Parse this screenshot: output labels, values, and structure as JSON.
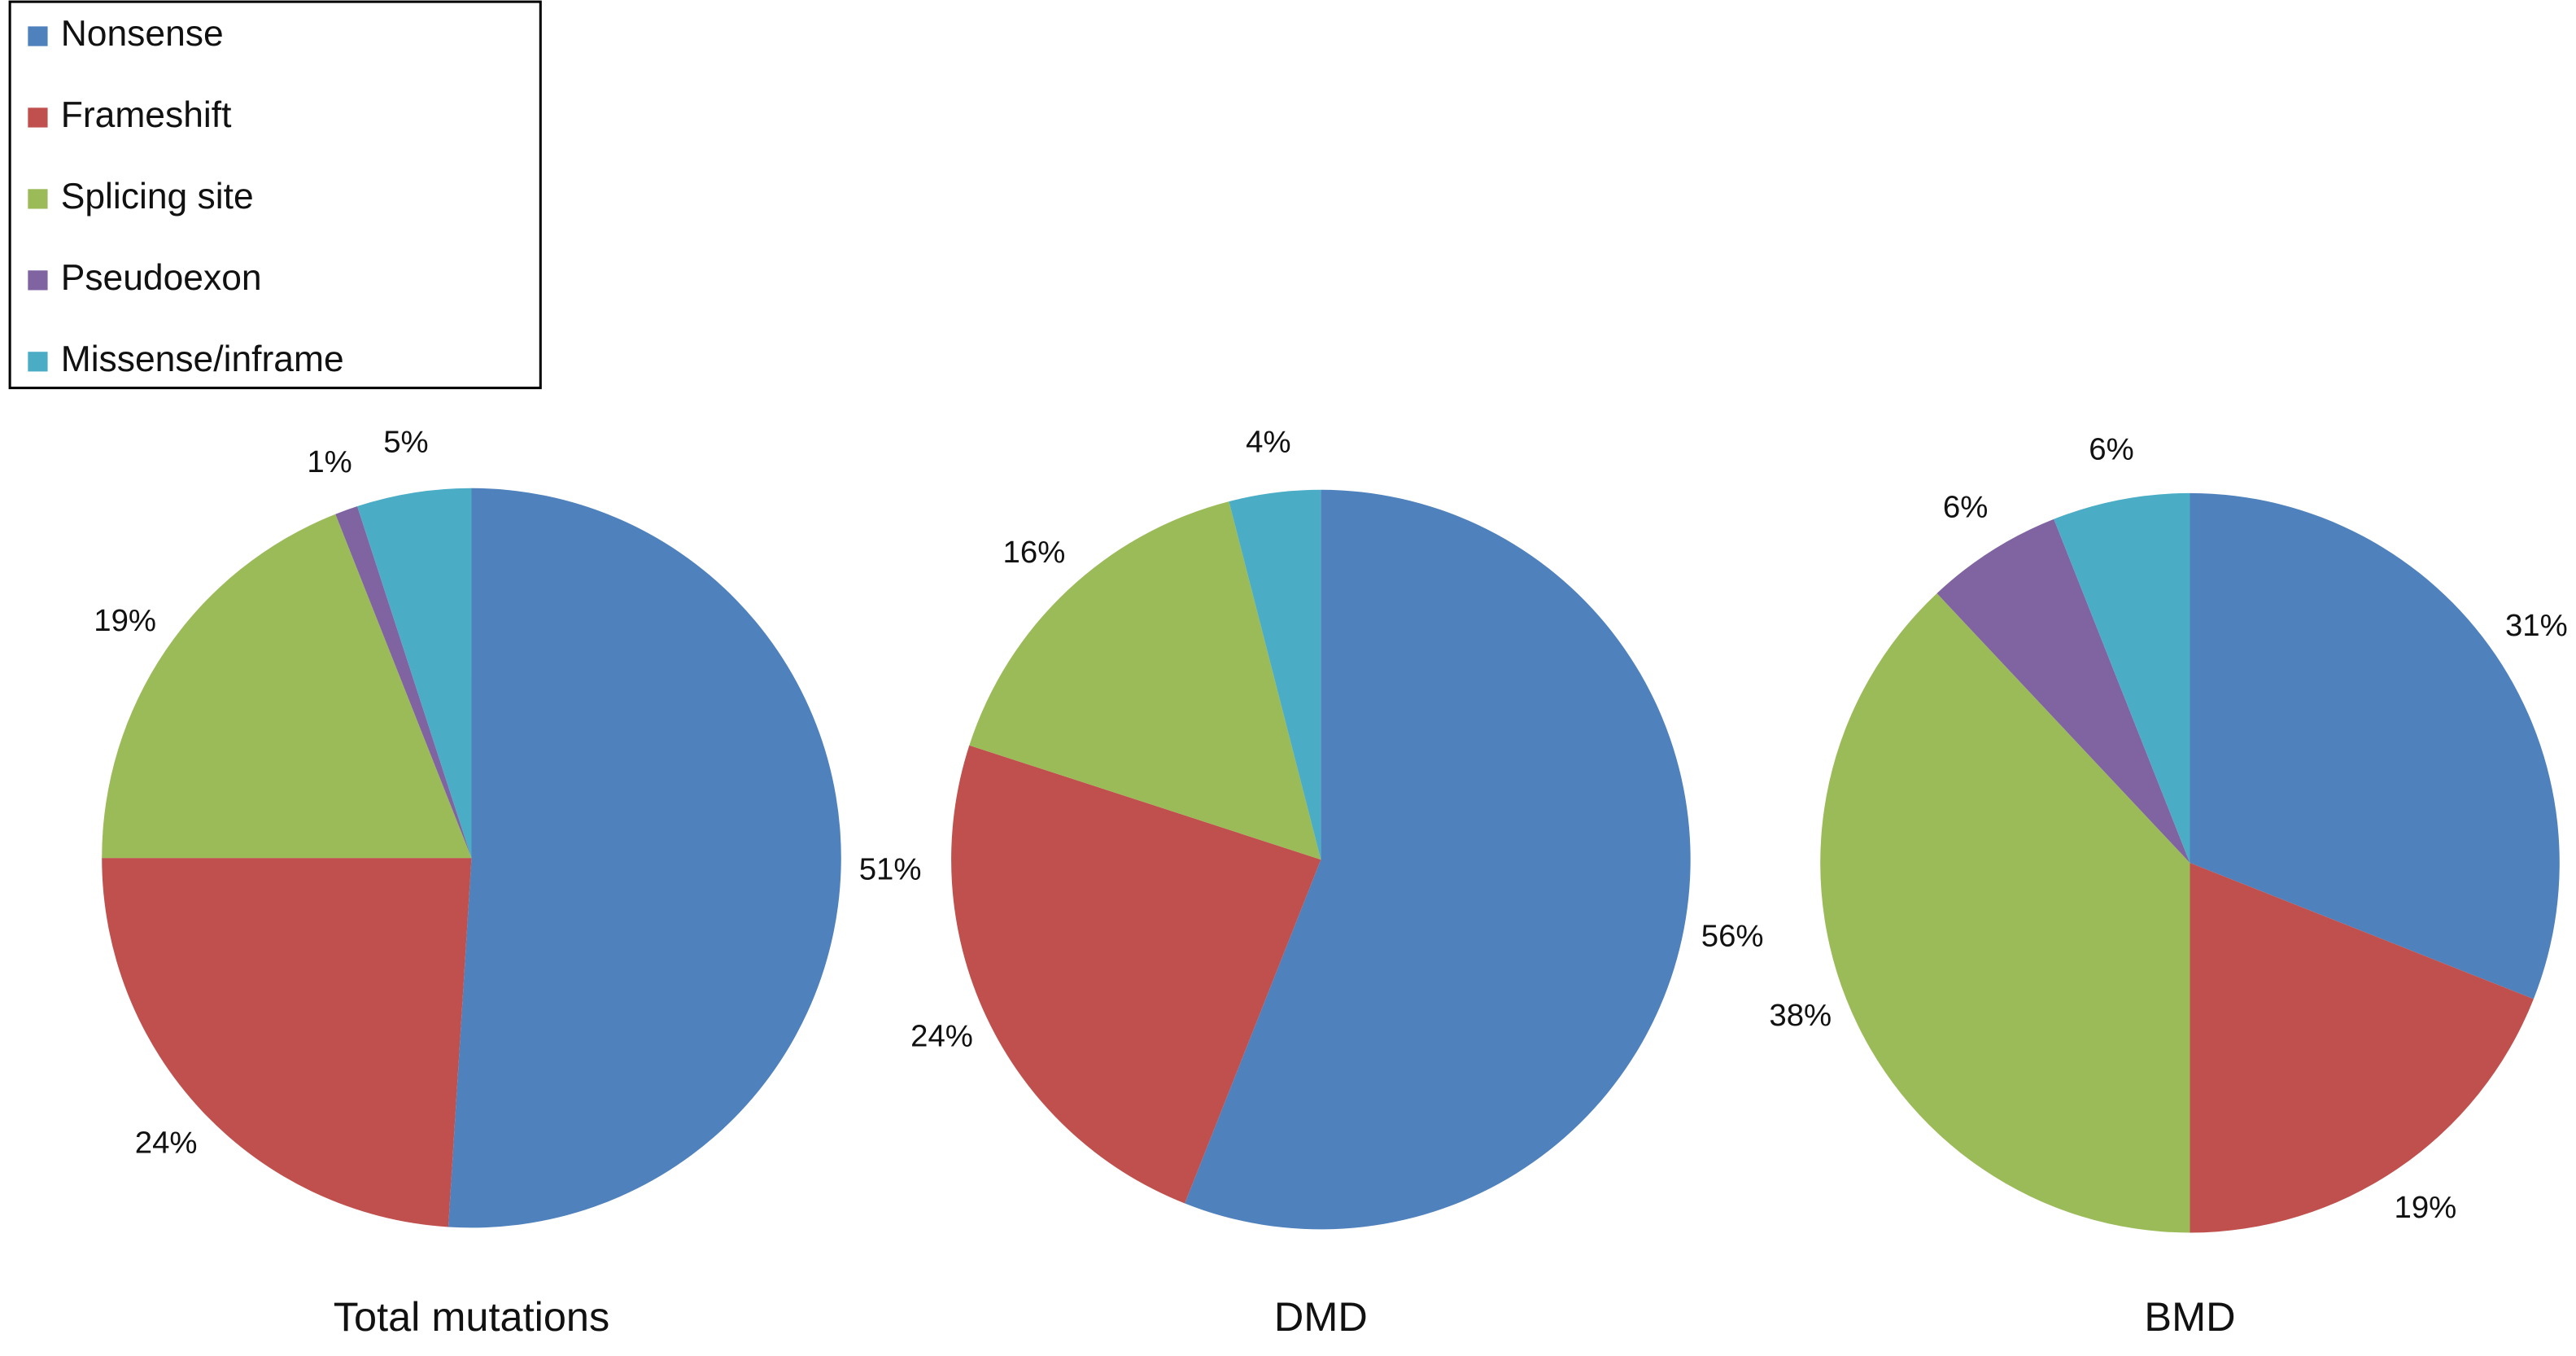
{
  "chart_data": [
    {
      "type": "pie",
      "title": "Total mutations",
      "categories": [
        "Nonsense",
        "Frameshift",
        "Splicing site",
        "Pseudoexon",
        "Missense/inframe"
      ],
      "values": [
        51,
        24,
        19,
        1,
        5
      ],
      "value_labels": [
        "51%",
        "24%",
        "19%",
        "1%",
        "5%"
      ],
      "colors": [
        "#4f81bd",
        "#c0504d",
        "#9bbb59",
        "#8064a2",
        "#4bacc6"
      ],
      "legend": "top-left"
    },
    {
      "type": "pie",
      "title": "DMD",
      "values": [
        56,
        24,
        16,
        4
      ],
      "value_labels": [
        "56%",
        "24%",
        "16%",
        "4%"
      ],
      "colors": [
        "#4f81bd",
        "#c0504d",
        "#9bbb59",
        "#4bacc6"
      ]
    },
    {
      "type": "pie",
      "title": "BMD",
      "values": [
        31,
        19,
        38,
        6,
        6
      ],
      "value_labels": [
        "31%",
        "19%",
        "38%",
        "6%",
        "6%"
      ],
      "colors": [
        "#4f81bd",
        "#c0504d",
        "#9bbb59",
        "#8064a2",
        "#4bacc6"
      ]
    }
  ]
}
